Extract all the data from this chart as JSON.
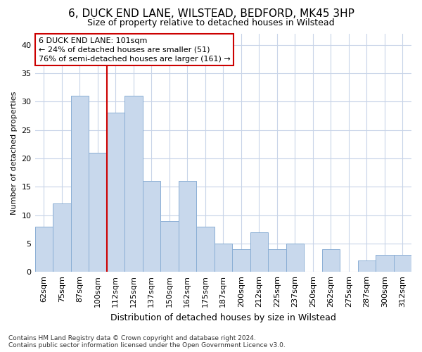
{
  "title": "6, DUCK END LANE, WILSTEAD, BEDFORD, MK45 3HP",
  "subtitle": "Size of property relative to detached houses in Wilstead",
  "xlabel": "Distribution of detached houses by size in Wilstead",
  "ylabel": "Number of detached properties",
  "categories": [
    "62sqm",
    "75sqm",
    "87sqm",
    "100sqm",
    "112sqm",
    "125sqm",
    "137sqm",
    "150sqm",
    "162sqm",
    "175sqm",
    "187sqm",
    "200sqm",
    "212sqm",
    "225sqm",
    "237sqm",
    "250sqm",
    "262sqm",
    "275sqm",
    "287sqm",
    "300sqm",
    "312sqm"
  ],
  "values": [
    8,
    12,
    31,
    21,
    28,
    31,
    16,
    9,
    16,
    8,
    5,
    4,
    7,
    4,
    5,
    0,
    4,
    0,
    2,
    3,
    3
  ],
  "bar_color": "#c8d8ec",
  "bar_edge_color": "#8aaed4",
  "grid_color": "#c8d4e8",
  "background_color": "#ffffff",
  "annotation_line1": "6 DUCK END LANE: 101sqm",
  "annotation_line2": "← 24% of detached houses are smaller (51)",
  "annotation_line3": "76% of semi-detached houses are larger (161) →",
  "property_line_x": 3.5,
  "ylim": [
    0,
    42
  ],
  "yticks": [
    0,
    5,
    10,
    15,
    20,
    25,
    30,
    35,
    40
  ],
  "footer_text": "Contains HM Land Registry data © Crown copyright and database right 2024.\nContains public sector information licensed under the Open Government Licence v3.0.",
  "property_line_color": "#cc0000",
  "title_fontsize": 11,
  "subtitle_fontsize": 9,
  "xlabel_fontsize": 9,
  "ylabel_fontsize": 8,
  "tick_fontsize": 8,
  "annotation_fontsize": 8,
  "footer_fontsize": 6.5
}
